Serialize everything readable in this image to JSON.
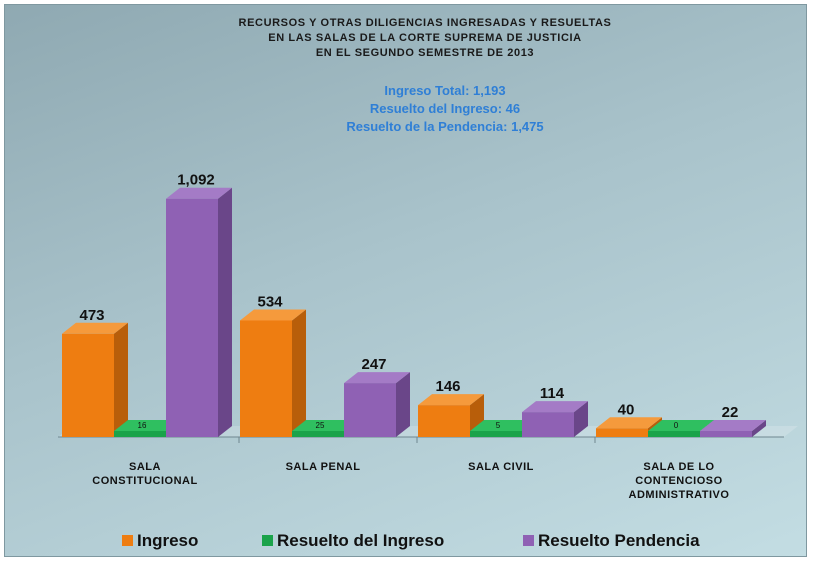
{
  "chart_data": {
    "type": "bar",
    "title": [
      "RECURSOS Y OTRAS DILIGENCIAS INGRESADAS Y RESUELTAS",
      "EN LAS SALAS DE LA CORTE SUPREMA DE JUSTICIA",
      "EN EL SEGUNDO SEMESTRE DE 2013"
    ],
    "summary": [
      "Ingreso Total: 1,193",
      "Resuelto del Ingreso: 46",
      "Resuelto de la Pendencia: 1,475"
    ],
    "categories": [
      [
        "SALA",
        "CONSTITUCIONAL"
      ],
      [
        "SALA PENAL"
      ],
      [
        "SALA CIVIL"
      ],
      [
        "SALA DE LO",
        "CONTENCIOSO",
        "ADMINISTRATIVO"
      ]
    ],
    "series": [
      {
        "name": "Ingreso",
        "values": [
          473,
          534,
          146,
          40
        ],
        "labels": [
          "473",
          "534",
          "146",
          "40"
        ],
        "color": "#ee7d11",
        "color_top": "#f59a3c",
        "color_side": "#b85e0a"
      },
      {
        "name": "Resuelto del Ingreso",
        "values": [
          16,
          25,
          5,
          0
        ],
        "labels": [
          "16",
          "25",
          "5",
          "0"
        ],
        "color": "#1aa34a",
        "color_top": "#2fbf60",
        "color_side": "#127a37"
      },
      {
        "name": "Resuelto Pendencia",
        "values": [
          1092,
          247,
          114,
          22
        ],
        "labels": [
          "1,092",
          "247",
          "114",
          "22"
        ],
        "color": "#8f61b4",
        "color_top": "#a47bc6",
        "color_side": "#6a4689"
      }
    ],
    "ylim": [
      0,
      1100
    ],
    "grid": false,
    "legend_position": "bottom"
  }
}
